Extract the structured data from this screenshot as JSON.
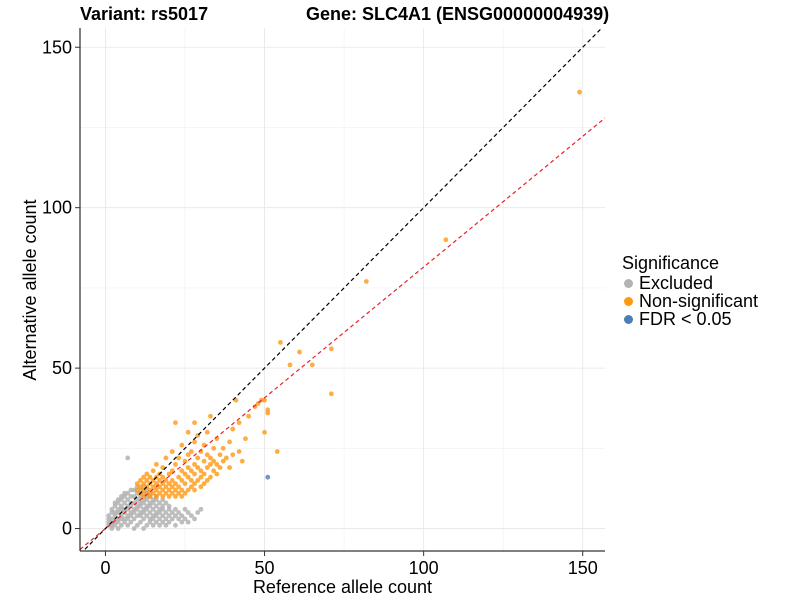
{
  "chart_data": {
    "type": "scatter",
    "title_left": "Variant: rs5017",
    "title_right": "Gene: SLC4A1 (ENSG00000004939)",
    "xlabel": "Reference allele count",
    "ylabel": "Alternative allele count",
    "xlim": [
      -8,
      157
    ],
    "ylim": [
      -7,
      156
    ],
    "x_ticks": [
      0,
      50,
      100,
      150
    ],
    "y_ticks": [
      0,
      50,
      100,
      150
    ],
    "grid": true,
    "legend": {
      "title": "Significance",
      "position": "right",
      "entries": [
        {
          "label": "Excluded",
          "color": "#b3b3b3"
        },
        {
          "label": "Non-significant",
          "color": "#ff9912"
        },
        {
          "label": "FDR < 0.05",
          "color": "#4a7eb5"
        }
      ]
    },
    "reference_lines": [
      {
        "name": "identity",
        "slope": 1.0,
        "intercept": 0,
        "color": "#000000",
        "style": "dashed"
      },
      {
        "name": "fit",
        "slope": 0.815,
        "intercept": 0,
        "color": "#e8222a",
        "style": "dashed"
      }
    ],
    "series": [
      {
        "name": "Excluded",
        "color": "#b3b3b3",
        "points": [
          [
            1,
            1
          ],
          [
            1,
            2
          ],
          [
            1,
            3
          ],
          [
            1,
            4
          ],
          [
            2,
            0
          ],
          [
            2,
            1
          ],
          [
            2,
            2
          ],
          [
            2,
            3
          ],
          [
            2,
            5
          ],
          [
            2,
            6
          ],
          [
            3,
            1
          ],
          [
            3,
            2
          ],
          [
            3,
            4
          ],
          [
            3,
            5
          ],
          [
            3,
            7
          ],
          [
            3,
            8
          ],
          [
            4,
            0
          ],
          [
            4,
            2
          ],
          [
            4,
            3
          ],
          [
            4,
            5
          ],
          [
            4,
            6
          ],
          [
            4,
            8
          ],
          [
            4,
            9
          ],
          [
            5,
            1
          ],
          [
            5,
            3
          ],
          [
            5,
            4
          ],
          [
            5,
            6
          ],
          [
            5,
            7
          ],
          [
            5,
            9
          ],
          [
            5,
            10
          ],
          [
            6,
            2
          ],
          [
            6,
            3
          ],
          [
            6,
            5
          ],
          [
            6,
            6
          ],
          [
            6,
            8
          ],
          [
            6,
            10
          ],
          [
            6,
            11
          ],
          [
            7,
            1
          ],
          [
            7,
            3
          ],
          [
            7,
            4
          ],
          [
            7,
            6
          ],
          [
            7,
            7
          ],
          [
            7,
            9
          ],
          [
            7,
            11
          ],
          [
            7,
            22
          ],
          [
            8,
            2
          ],
          [
            8,
            4
          ],
          [
            8,
            5
          ],
          [
            8,
            7
          ],
          [
            8,
            8
          ],
          [
            8,
            10
          ],
          [
            8,
            12
          ],
          [
            9,
            0
          ],
          [
            9,
            3
          ],
          [
            9,
            5
          ],
          [
            9,
            6
          ],
          [
            9,
            8
          ],
          [
            9,
            10
          ],
          [
            9,
            12
          ],
          [
            10,
            1
          ],
          [
            10,
            4
          ],
          [
            10,
            6
          ],
          [
            10,
            7
          ],
          [
            10,
            9
          ],
          [
            10,
            11
          ],
          [
            10,
            13
          ],
          [
            11,
            2
          ],
          [
            11,
            4
          ],
          [
            11,
            5
          ],
          [
            11,
            7
          ],
          [
            11,
            8
          ],
          [
            11,
            10
          ],
          [
            11,
            12
          ],
          [
            12,
            0
          ],
          [
            12,
            3
          ],
          [
            12,
            5
          ],
          [
            12,
            6
          ],
          [
            12,
            8
          ],
          [
            12,
            9
          ],
          [
            12,
            11
          ],
          [
            12,
            13
          ],
          [
            13,
            1
          ],
          [
            13,
            4
          ],
          [
            13,
            6
          ],
          [
            13,
            7
          ],
          [
            13,
            9
          ],
          [
            13,
            10
          ],
          [
            13,
            12
          ],
          [
            14,
            2
          ],
          [
            14,
            3
          ],
          [
            14,
            5
          ],
          [
            14,
            7
          ],
          [
            14,
            8
          ],
          [
            14,
            10
          ],
          [
            14,
            11
          ],
          [
            15,
            1
          ],
          [
            15,
            3
          ],
          [
            15,
            4
          ],
          [
            15,
            6
          ],
          [
            15,
            8
          ],
          [
            15,
            9
          ],
          [
            16,
            2
          ],
          [
            16,
            4
          ],
          [
            16,
            5
          ],
          [
            16,
            7
          ],
          [
            16,
            9
          ],
          [
            16,
            10
          ],
          [
            17,
            1
          ],
          [
            17,
            3
          ],
          [
            17,
            5
          ],
          [
            17,
            6
          ],
          [
            17,
            8
          ],
          [
            18,
            2
          ],
          [
            18,
            4
          ],
          [
            18,
            6
          ],
          [
            18,
            7
          ],
          [
            18,
            9
          ],
          [
            19,
            1
          ],
          [
            19,
            3
          ],
          [
            19,
            5
          ],
          [
            19,
            8
          ],
          [
            20,
            2
          ],
          [
            20,
            4
          ],
          [
            20,
            6
          ],
          [
            20,
            7
          ],
          [
            21,
            3
          ],
          [
            21,
            5
          ],
          [
            22,
            1
          ],
          [
            22,
            4
          ],
          [
            22,
            6
          ],
          [
            23,
            3
          ],
          [
            23,
            5
          ],
          [
            24,
            2
          ],
          [
            24,
            4
          ],
          [
            25,
            3
          ],
          [
            25,
            6
          ],
          [
            26,
            2
          ],
          [
            26,
            5
          ],
          [
            27,
            4
          ],
          [
            28,
            3
          ],
          [
            29,
            5
          ],
          [
            30,
            6
          ]
        ]
      },
      {
        "name": "Non-significant",
        "color": "#ff9912",
        "points": [
          [
            10,
            12
          ],
          [
            10,
            14
          ],
          [
            11,
            11
          ],
          [
            11,
            13
          ],
          [
            11,
            15
          ],
          [
            12,
            10
          ],
          [
            12,
            12
          ],
          [
            12,
            14
          ],
          [
            12,
            16
          ],
          [
            13,
            11
          ],
          [
            13,
            13
          ],
          [
            13,
            15
          ],
          [
            13,
            17
          ],
          [
            14,
            10
          ],
          [
            14,
            12
          ],
          [
            14,
            14
          ],
          [
            14,
            16
          ],
          [
            15,
            11
          ],
          [
            15,
            13
          ],
          [
            15,
            15
          ],
          [
            15,
            18
          ],
          [
            16,
            10
          ],
          [
            16,
            12
          ],
          [
            16,
            14
          ],
          [
            16,
            16
          ],
          [
            16,
            20
          ],
          [
            17,
            11
          ],
          [
            17,
            13
          ],
          [
            17,
            15
          ],
          [
            17,
            17
          ],
          [
            18,
            10
          ],
          [
            18,
            12
          ],
          [
            18,
            14
          ],
          [
            18,
            16
          ],
          [
            18,
            19
          ],
          [
            19,
            11
          ],
          [
            19,
            13
          ],
          [
            19,
            15
          ],
          [
            19,
            22
          ],
          [
            20,
            10
          ],
          [
            20,
            12
          ],
          [
            20,
            14
          ],
          [
            20,
            17
          ],
          [
            21,
            11
          ],
          [
            21,
            13
          ],
          [
            21,
            15
          ],
          [
            21,
            18
          ],
          [
            21,
            24
          ],
          [
            22,
            10
          ],
          [
            22,
            12
          ],
          [
            22,
            14
          ],
          [
            22,
            20
          ],
          [
            22,
            33
          ],
          [
            23,
            11
          ],
          [
            23,
            13
          ],
          [
            23,
            16
          ],
          [
            23,
            22
          ],
          [
            24,
            10
          ],
          [
            24,
            12
          ],
          [
            24,
            15
          ],
          [
            24,
            18
          ],
          [
            24,
            26
          ],
          [
            25,
            11
          ],
          [
            25,
            14
          ],
          [
            25,
            17
          ],
          [
            25,
            21
          ],
          [
            26,
            12
          ],
          [
            26,
            16
          ],
          [
            26,
            19
          ],
          [
            26,
            23
          ],
          [
            26,
            30
          ],
          [
            27,
            13
          ],
          [
            27,
            15
          ],
          [
            27,
            18
          ],
          [
            27,
            24
          ],
          [
            28,
            12
          ],
          [
            28,
            14
          ],
          [
            28,
            17
          ],
          [
            28,
            20
          ],
          [
            28,
            27
          ],
          [
            28,
            33
          ],
          [
            29,
            15
          ],
          [
            29,
            19
          ],
          [
            29,
            22
          ],
          [
            29,
            29
          ],
          [
            30,
            13
          ],
          [
            30,
            16
          ],
          [
            30,
            18
          ],
          [
            30,
            24
          ],
          [
            31,
            14
          ],
          [
            31,
            17
          ],
          [
            31,
            21
          ],
          [
            31,
            26
          ],
          [
            32,
            15
          ],
          [
            32,
            19
          ],
          [
            32,
            23
          ],
          [
            32,
            30
          ],
          [
            33,
            16
          ],
          [
            33,
            20
          ],
          [
            33,
            22
          ],
          [
            33,
            35
          ],
          [
            34,
            18
          ],
          [
            34,
            21
          ],
          [
            34,
            25
          ],
          [
            35,
            17
          ],
          [
            35,
            20
          ],
          [
            35,
            28
          ],
          [
            36,
            19
          ],
          [
            36,
            23
          ],
          [
            37,
            21
          ],
          [
            37,
            25
          ],
          [
            38,
            22
          ],
          [
            39,
            19
          ],
          [
            39,
            27
          ],
          [
            40,
            23
          ],
          [
            40,
            31
          ],
          [
            41,
            40
          ],
          [
            42,
            24
          ],
          [
            42,
            33
          ],
          [
            43,
            21
          ],
          [
            44,
            28
          ],
          [
            45,
            35
          ],
          [
            47,
            38
          ],
          [
            48,
            39
          ],
          [
            49,
            40
          ],
          [
            50,
            40
          ],
          [
            50,
            30
          ],
          [
            51,
            37
          ],
          [
            51,
            36
          ],
          [
            54,
            24
          ],
          [
            55,
            58
          ],
          [
            58,
            51
          ],
          [
            61,
            55
          ],
          [
            65,
            51
          ],
          [
            71,
            42
          ],
          [
            71,
            56
          ],
          [
            82,
            77
          ],
          [
            107,
            90
          ],
          [
            149,
            136
          ]
        ]
      },
      {
        "name": "FDR < 0.05",
        "color": "#4a7eb5",
        "points": [
          [
            51,
            16
          ]
        ]
      }
    ]
  }
}
